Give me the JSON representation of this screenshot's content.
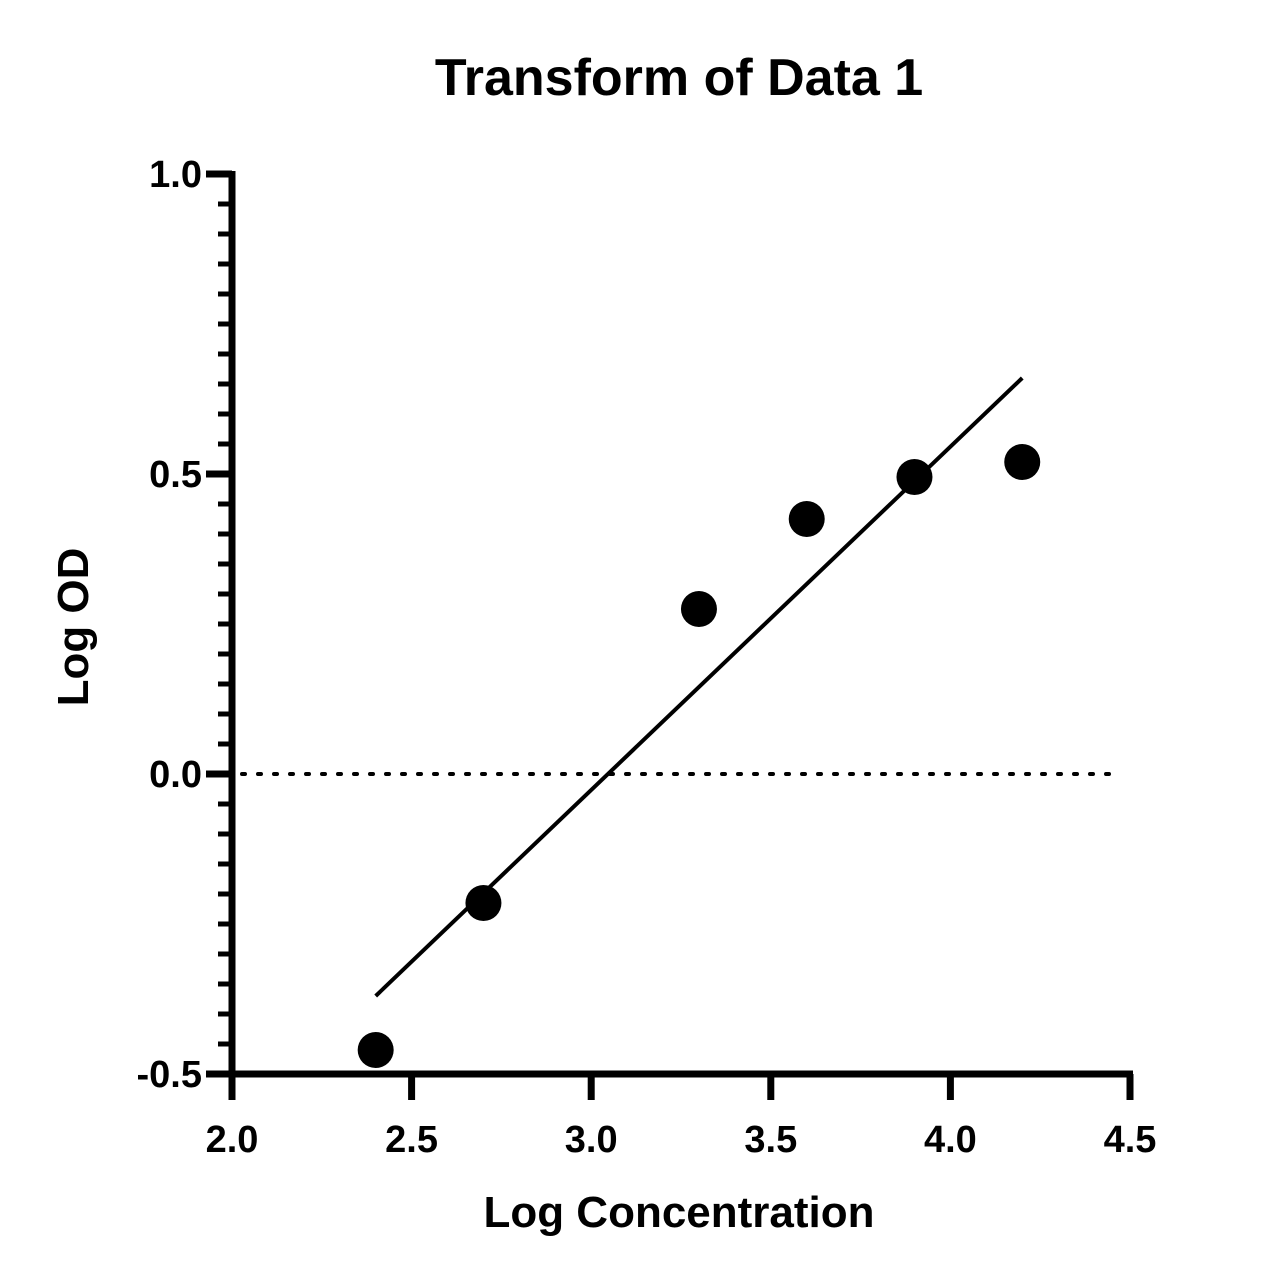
{
  "chart_data": {
    "type": "scatter",
    "title": "Transform of Data 1",
    "xlabel": "Log Concentration",
    "ylabel": "Log OD",
    "xlim": [
      2.0,
      4.5
    ],
    "ylim": [
      -0.5,
      1.0
    ],
    "x_ticks": [
      "2.0",
      "2.5",
      "3.0",
      "3.5",
      "4.0",
      "4.5"
    ],
    "y_ticks": [
      "-0.5",
      "0.0",
      "0.5",
      "1.0"
    ],
    "x_tick_values": [
      2.0,
      2.5,
      3.0,
      3.5,
      4.0,
      4.5
    ],
    "y_tick_values": [
      -0.5,
      0.0,
      0.5,
      1.0
    ],
    "series": [
      {
        "x": [
          2.4,
          2.7,
          3.3,
          3.6,
          3.9,
          4.2
        ],
        "y": [
          -0.46,
          -0.215,
          0.275,
          0.425,
          0.495,
          0.52
        ]
      }
    ],
    "fit_line": {
      "x": [
        2.4,
        4.2
      ],
      "y": [
        -0.37,
        0.66
      ]
    },
    "reference_line": {
      "y": 0.0,
      "style": "dotted"
    },
    "grid": false,
    "colors": {
      "points": "#000000",
      "line": "#000000",
      "axis": "#000000"
    }
  }
}
